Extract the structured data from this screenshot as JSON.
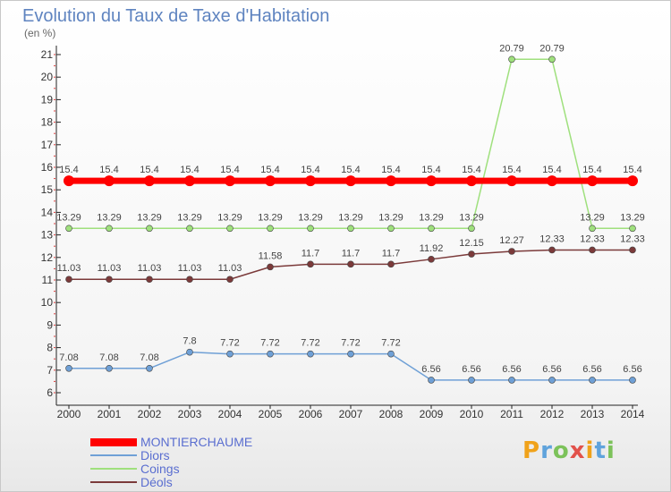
{
  "header": {
    "title": "Evolution du Taux de Taxe d'Habitation",
    "unit": "(en %)"
  },
  "logo": {
    "text": "Proxiti"
  },
  "colors": {
    "montierchaume": "#ff0000",
    "diors": "#6fa0d6",
    "coings": "#9fe07d",
    "deols": "#7b3a3a",
    "legend_text": "#5a6ed0"
  },
  "chart_data": {
    "type": "line",
    "title": "Evolution du Taux de Taxe d'Habitation",
    "ylabel": "(en %)",
    "ylim": [
      6,
      21
    ],
    "grid": false,
    "legend": "bottom-left",
    "x": [
      "2000",
      "2001",
      "2002",
      "2003",
      "2004",
      "2005",
      "2006",
      "2007",
      "2008",
      "2009",
      "2010",
      "2011",
      "2012",
      "2013",
      "2014"
    ],
    "yticks": [
      6,
      7,
      8,
      9,
      10,
      11,
      12,
      13,
      14,
      15,
      16,
      17,
      18,
      19,
      20,
      21
    ],
    "series": [
      {
        "name": "MONTIERCHAUME",
        "key": "montierchaume",
        "values": [
          15.4,
          15.4,
          15.4,
          15.4,
          15.4,
          15.4,
          15.4,
          15.4,
          15.4,
          15.4,
          15.4,
          15.4,
          15.4,
          15.4,
          15.4
        ],
        "labels": [
          "15.4",
          "15.4",
          "15.4",
          "15.4",
          "15.4",
          "15.4",
          "15.4",
          "15.4",
          "15.4",
          "15.4",
          "15.4",
          "15.4",
          "15.4",
          "15.4",
          "15.4"
        ]
      },
      {
        "name": "Diors",
        "key": "diors",
        "values": [
          7.08,
          7.08,
          7.08,
          7.8,
          7.72,
          7.72,
          7.72,
          7.72,
          7.72,
          6.56,
          6.56,
          6.56,
          6.56,
          6.56,
          6.56
        ],
        "labels": [
          "7.08",
          "7.08",
          "7.08",
          "7.8",
          "7.72",
          "7.72",
          "7.72",
          "7.72",
          "7.72",
          "6.56",
          "6.56",
          "6.56",
          "6.56",
          "6.56",
          "6.56"
        ]
      },
      {
        "name": "Coings",
        "key": "coings",
        "values": [
          13.29,
          13.29,
          13.29,
          13.29,
          13.29,
          13.29,
          13.29,
          13.29,
          13.29,
          13.29,
          13.29,
          20.79,
          20.79,
          13.29,
          13.29
        ],
        "labels": [
          "13.29",
          "13.29",
          "13.29",
          "13.29",
          "13.29",
          "13.29",
          "13.29",
          "13.29",
          "13.29",
          "13.29",
          "13.29",
          "20.79",
          "20.79",
          "13.29",
          "13.29"
        ]
      },
      {
        "name": "Déols",
        "key": "deols",
        "values": [
          11.03,
          11.03,
          11.03,
          11.03,
          11.03,
          11.58,
          11.7,
          11.7,
          11.7,
          11.92,
          12.15,
          12.27,
          12.33,
          12.33,
          12.33
        ],
        "labels": [
          "11.03",
          "11.03",
          "11.03",
          "11.03",
          "11.03",
          "11.58",
          "11.7",
          "11.7",
          "11.7",
          "11.92",
          "12.15",
          "12.27",
          "12.33",
          "12.33",
          "12.33"
        ]
      }
    ]
  }
}
